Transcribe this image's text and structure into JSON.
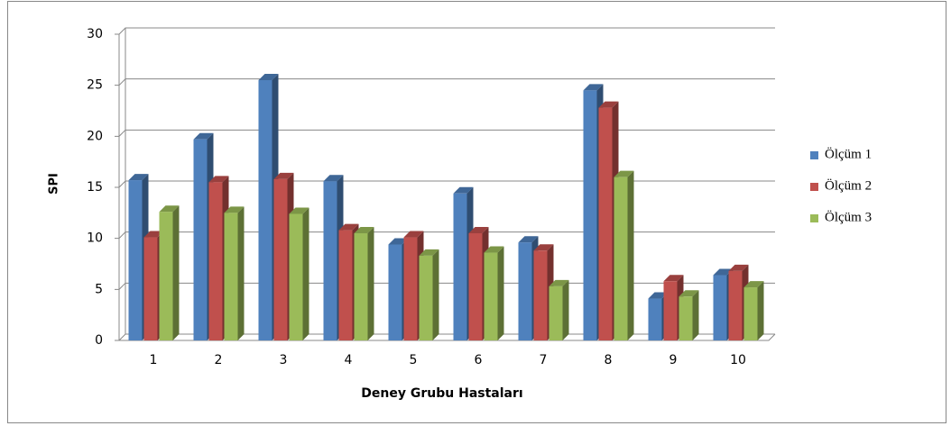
{
  "chart_data": {
    "type": "bar",
    "y_label": "SPI",
    "x_label": "Deney Grubu Hastaları",
    "categories": [
      "1",
      "2",
      "3",
      "4",
      "5",
      "6",
      "7",
      "8",
      "9",
      "10"
    ],
    "series": [
      {
        "name": "Ölçüm 1",
        "color": "#4f81bd",
        "values": [
          15.7,
          19.7,
          25.5,
          15.6,
          9.4,
          14.4,
          9.6,
          24.5,
          4.1,
          6.4
        ]
      },
      {
        "name": "Ölçüm 2",
        "color": "#c0504d",
        "values": [
          10.1,
          15.5,
          15.8,
          10.8,
          10.1,
          10.5,
          8.8,
          22.8,
          5.8,
          6.8
        ]
      },
      {
        "name": "Ölçüm 3",
        "color": "#9bbb59",
        "values": [
          12.6,
          12.5,
          12.4,
          10.5,
          8.3,
          8.6,
          5.3,
          16.0,
          4.3,
          5.2
        ]
      }
    ],
    "ylim": [
      0,
      30
    ],
    "yticks": [
      0,
      5,
      10,
      15,
      20,
      25,
      30
    ],
    "grid": true,
    "legend": "right"
  }
}
